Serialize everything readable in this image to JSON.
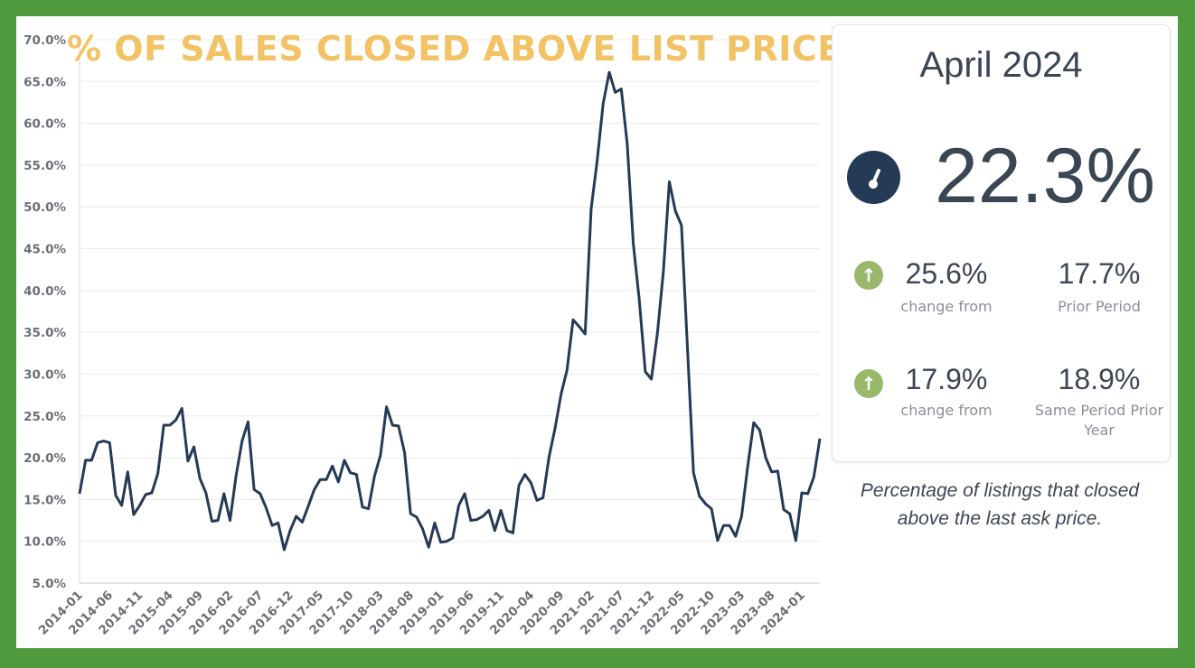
{
  "title": "% OF SALES CLOSED ABOVE LIST PRICE",
  "card": {
    "month": "April 2024",
    "value": "22.3%",
    "icon": "gauge-icon",
    "row1": {
      "icon": "arrow-up-icon",
      "change": "25.6%",
      "change_label": "change from",
      "prior": "17.7%",
      "prior_label": "Prior Period"
    },
    "row2": {
      "icon": "arrow-up-icon",
      "change": "17.9%",
      "change_label": "change from",
      "prior": "18.9%",
      "prior_label": "Same Period Prior Year"
    }
  },
  "description": "Percentage of listings that closed above the last ask price.",
  "colors": {
    "background": "#4f9a3f",
    "title": "#f2c265",
    "line": "#243a55",
    "arrow": "#9ab86b"
  },
  "chart_data": {
    "type": "line",
    "title": "% OF SALES CLOSED ABOVE LIST PRICE",
    "ylim": [
      5,
      70
    ],
    "y_ticks": [
      "5.0%",
      "10.0%",
      "15.0%",
      "20.0%",
      "25.0%",
      "30.0%",
      "35.0%",
      "40.0%",
      "45.0%",
      "50.0%",
      "55.0%",
      "60.0%",
      "65.0%",
      "70.0%"
    ],
    "x_ticks": [
      "2014-01",
      "2014-06",
      "2014-11",
      "2015-04",
      "2015-09",
      "2016-02",
      "2016-07",
      "2016-12",
      "2017-05",
      "2017-10",
      "2018-03",
      "2018-08",
      "2019-01",
      "2019-06",
      "2019-11",
      "2020-04",
      "2020-09",
      "2021-02",
      "2021-07",
      "2021-12",
      "2022-05",
      "2022-10",
      "2023-03",
      "2023-08",
      "2024-01"
    ],
    "x_start": "2014-01",
    "x_end": "2024-04",
    "grid": "horizontal",
    "series": [
      {
        "values": [
          15.7,
          19.7,
          19.7,
          21.8,
          22.0,
          21.8,
          15.5,
          14.3,
          18.3,
          13.2,
          14.3,
          15.6,
          15.8,
          18.1,
          23.9,
          23.9,
          24.5,
          25.9,
          19.6,
          21.3,
          17.5,
          15.8,
          12.4,
          12.5,
          15.7,
          12.5,
          17.8,
          22.0,
          24.3,
          16.2,
          15.7,
          14.0,
          11.9,
          12.2,
          9.0,
          11.3,
          13.0,
          12.3,
          14.2,
          16.2,
          17.4,
          17.4,
          19.0,
          17.1,
          19.7,
          18.2,
          18.0,
          14.1,
          13.9,
          17.8,
          20.3,
          26.1,
          23.9,
          23.8,
          20.6,
          13.3,
          12.9,
          11.5,
          9.3,
          12.2,
          9.9,
          10.0,
          10.4,
          14.3,
          15.7,
          12.5,
          12.6,
          13.0,
          13.7,
          11.3,
          13.7,
          11.3,
          11.0,
          16.7,
          18.0,
          17.0,
          14.9,
          15.2,
          20.1,
          23.5,
          27.6,
          30.5,
          36.5,
          35.7,
          34.8,
          49.8,
          55.5,
          62.4,
          66.1,
          63.7,
          64.1,
          57.5,
          45.6,
          38.9,
          30.3,
          29.4,
          34.8,
          42.3,
          53.0,
          49.5,
          47.8,
          33.2,
          18.2,
          15.4,
          14.5,
          13.9,
          10.1,
          11.9,
          11.9,
          10.6,
          13.0,
          18.9,
          24.2,
          23.3,
          20.0,
          18.3,
          18.4,
          13.8,
          13.3,
          10.1,
          15.8,
          15.7,
          17.7,
          22.3
        ]
      }
    ]
  }
}
